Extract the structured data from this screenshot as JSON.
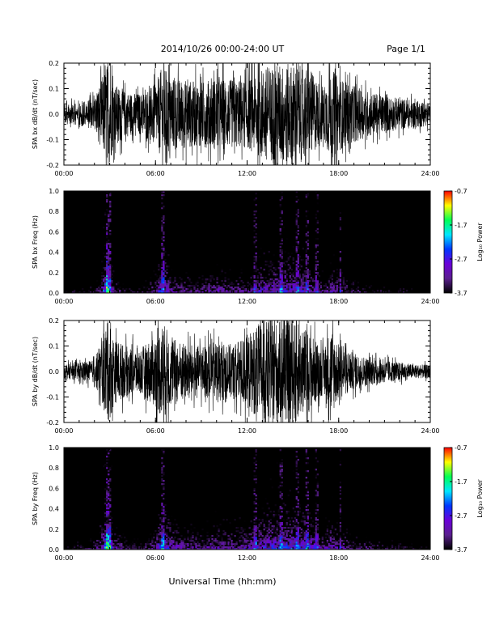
{
  "header": {
    "date_range": "2014/10/26  00:00-24:00 UT",
    "page": "Page 1/1"
  },
  "footer": {
    "xlabel": "Universal Time (hh:mm)"
  },
  "colors": {
    "spectrogram_background": "#000000",
    "waveform_trace": "#000000",
    "colormap": [
      "#000000",
      "#5b1f8f",
      "#6b00d8",
      "#0037ff",
      "#00e6ff",
      "#00ff55",
      "#ffff00",
      "#ff0000"
    ]
  },
  "chart_data": [
    {
      "type": "line",
      "panel": "bx-waveform",
      "ylabel": "SPA bx dB/dt (nT/sec)",
      "xlim": [
        0,
        24
      ],
      "ylim": [
        -0.2,
        0.2
      ],
      "x_ticks": [
        "00:00",
        "06:00",
        "12:00",
        "18:00",
        "24:00"
      ],
      "y_ticks": [
        "0.2",
        "0.1",
        "0.0",
        "-0.1",
        "-0.2"
      ],
      "envelope_hours": [
        0,
        1,
        2,
        2.5,
        2.8,
        3.0,
        3.3,
        3.7,
        4,
        5,
        6,
        6.5,
        7,
        8,
        9,
        10,
        11,
        12,
        13,
        14,
        15,
        16,
        17,
        17.5,
        18,
        19,
        20,
        21,
        22,
        23,
        24
      ],
      "envelope_amplitude": [
        0.04,
        0.05,
        0.07,
        0.16,
        0.22,
        0.22,
        0.13,
        0.12,
        0.1,
        0.09,
        0.13,
        0.22,
        0.16,
        0.15,
        0.14,
        0.16,
        0.15,
        0.15,
        0.2,
        0.22,
        0.22,
        0.2,
        0.12,
        0.2,
        0.16,
        0.12,
        0.1,
        0.08,
        0.07,
        0.06,
        0.05
      ]
    },
    {
      "type": "heatmap",
      "panel": "bx-spectrogram",
      "ylabel": "SPA bx Freq (Hz)",
      "xlim": [
        0,
        24
      ],
      "ylim": [
        0,
        1
      ],
      "x_ticks": [
        "00:00",
        "06:00",
        "12:00",
        "18:00",
        "24:00"
      ],
      "y_ticks": [
        "1.0",
        "0.8",
        "0.6",
        "0.4",
        "0.2",
        "0.0"
      ],
      "colorbar": {
        "label": "Log₁₀ Power",
        "range": [
          -3.7,
          -0.7
        ],
        "ticks": [
          "-0.7",
          "-1.7",
          "-2.7",
          "-3.7"
        ]
      },
      "activity_hours": [
        0,
        1,
        2,
        2.5,
        2.8,
        3.0,
        3.3,
        3.7,
        4,
        5,
        6,
        6.5,
        7,
        8,
        9,
        10,
        11,
        12,
        13,
        14,
        15,
        16,
        17,
        17.5,
        18,
        19,
        20,
        21,
        22,
        23,
        24
      ],
      "activity_level": [
        0.25,
        0.3,
        0.35,
        0.6,
        1.0,
        0.85,
        0.45,
        0.45,
        0.35,
        0.3,
        0.5,
        0.8,
        0.55,
        0.5,
        0.45,
        0.55,
        0.5,
        0.5,
        0.65,
        0.7,
        0.7,
        0.65,
        0.45,
        0.6,
        0.5,
        0.4,
        0.35,
        0.3,
        0.3,
        0.25,
        0.25
      ],
      "vertical_stripes_hours": [
        2.85,
        3.0,
        6.5,
        12.5,
        14.2,
        15.3,
        15.9,
        16.6,
        18.1
      ]
    },
    {
      "type": "line",
      "panel": "by-waveform",
      "ylabel": "SPA by dB/dt (nT/sec)",
      "xlim": [
        0,
        24
      ],
      "ylim": [
        -0.2,
        0.2
      ],
      "x_ticks": [
        "00:00",
        "06:00",
        "12:00",
        "18:00",
        "24:00"
      ],
      "y_ticks": [
        "0.2",
        "0.1",
        "0.0",
        "-0.1",
        "-0.2"
      ],
      "envelope_hours": [
        0,
        1,
        2,
        2.5,
        2.8,
        3.0,
        3.3,
        3.7,
        4,
        5,
        6,
        6.5,
        7,
        8,
        9,
        10,
        11,
        12,
        13,
        14,
        15,
        16,
        17,
        17.5,
        18,
        19,
        20,
        21,
        22,
        23,
        24
      ],
      "envelope_amplitude": [
        0.03,
        0.04,
        0.05,
        0.14,
        0.22,
        0.22,
        0.14,
        0.13,
        0.11,
        0.1,
        0.16,
        0.22,
        0.15,
        0.12,
        0.11,
        0.13,
        0.12,
        0.16,
        0.22,
        0.22,
        0.22,
        0.18,
        0.1,
        0.2,
        0.12,
        0.08,
        0.06,
        0.05,
        0.04,
        0.03,
        0.03
      ]
    },
    {
      "type": "heatmap",
      "panel": "by-spectrogram",
      "ylabel": "SPA by Freq (Hz)",
      "xlim": [
        0,
        24
      ],
      "ylim": [
        0,
        1
      ],
      "x_ticks": [
        "00:00",
        "06:00",
        "12:00",
        "18:00",
        "24:00"
      ],
      "y_ticks": [
        "1.0",
        "0.8",
        "0.6",
        "0.4",
        "0.2",
        "0.0"
      ],
      "colorbar": {
        "label": "Log₁₀ Power",
        "range": [
          -3.7,
          -0.7
        ],
        "ticks": [
          "-0.7",
          "-1.7",
          "-2.7",
          "-3.7"
        ]
      },
      "activity_hours": [
        0,
        1,
        2,
        2.5,
        2.8,
        3.0,
        3.3,
        3.7,
        4,
        5,
        6,
        6.5,
        7,
        8,
        9,
        10,
        11,
        12,
        13,
        14,
        15,
        16,
        17,
        17.5,
        18,
        19,
        20,
        21,
        22,
        23,
        24
      ],
      "activity_level": [
        0.3,
        0.35,
        0.4,
        0.65,
        1.0,
        0.9,
        0.5,
        0.5,
        0.4,
        0.35,
        0.55,
        0.85,
        0.6,
        0.55,
        0.5,
        0.6,
        0.55,
        0.6,
        0.7,
        0.75,
        0.75,
        0.7,
        0.5,
        0.65,
        0.55,
        0.45,
        0.4,
        0.35,
        0.35,
        0.3,
        0.3
      ],
      "vertical_stripes_hours": [
        2.85,
        3.0,
        6.5,
        12.5,
        14.2,
        15.3,
        15.9,
        16.6,
        18.1
      ]
    }
  ]
}
